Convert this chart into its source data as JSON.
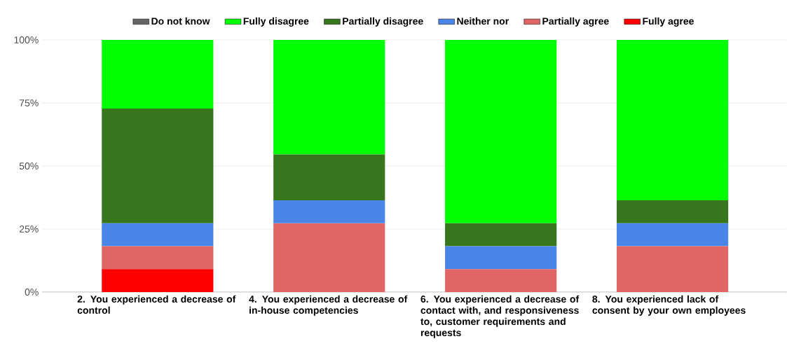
{
  "chart_data": {
    "type": "bar",
    "stacked": true,
    "categories": [
      "2. You experienced a decrease of control",
      "4. You experienced a decrease of in-house competencies",
      "6. You experienced a decrease of contact with, and responsiveness to, customer requirements and requests",
      "8. You experienced lack of consent by your own employees"
    ],
    "series": [
      {
        "name": "Fully agree",
        "color": "#ff0000",
        "values": [
          9.1,
          0,
          0,
          0
        ]
      },
      {
        "name": "Partially agree",
        "color": "#e06666",
        "values": [
          9.1,
          27.3,
          9.1,
          18.2
        ]
      },
      {
        "name": "Neither nor",
        "color": "#4a86e8",
        "values": [
          9.1,
          9.1,
          9.1,
          9.1
        ]
      },
      {
        "name": "Partially disagree",
        "color": "#38761d",
        "values": [
          45.5,
          18.2,
          9.1,
          9.1
        ]
      },
      {
        "name": "Fully disagree",
        "color": "#00ff00",
        "values": [
          27.3,
          45.5,
          72.7,
          63.6
        ]
      },
      {
        "name": "Do not know",
        "color": "#666666",
        "values": [
          0,
          0,
          0,
          0
        ]
      }
    ],
    "ylim": [
      0,
      100
    ],
    "yticks": [
      {
        "value": 0,
        "label": "0%"
      },
      {
        "value": 25,
        "label": "25%"
      },
      {
        "value": 50,
        "label": "50%"
      },
      {
        "value": 75,
        "label": "75%"
      },
      {
        "value": 100,
        "label": "100%"
      }
    ],
    "grid": "y",
    "legend": "top"
  }
}
